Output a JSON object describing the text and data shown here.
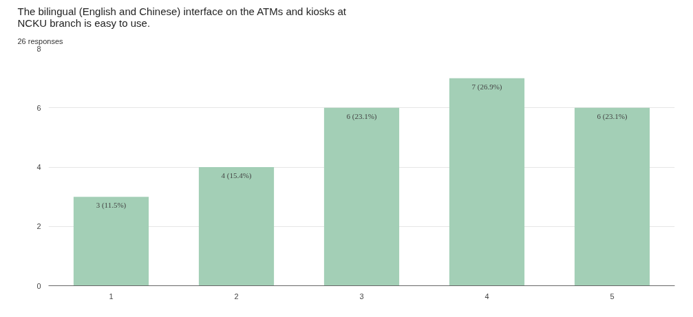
{
  "chart_data": {
    "type": "bar",
    "title": "The bilingual (English and Chinese) interface on the ATMs and kiosks at\nNCKU branch is easy to use.",
    "subtitle": "26 responses",
    "categories": [
      "1",
      "2",
      "3",
      "4",
      "5"
    ],
    "values": [
      3,
      4,
      6,
      7,
      6
    ],
    "value_labels": [
      "3 (11.5%)",
      "4 (15.4%)",
      "6 (23.1%)",
      "7 (26.9%)",
      "6 (23.1%)"
    ],
    "color": "#a3cfb6",
    "ylim": [
      0,
      8
    ],
    "yticks": [
      0,
      2,
      4,
      6,
      8
    ],
    "grid": "y"
  }
}
